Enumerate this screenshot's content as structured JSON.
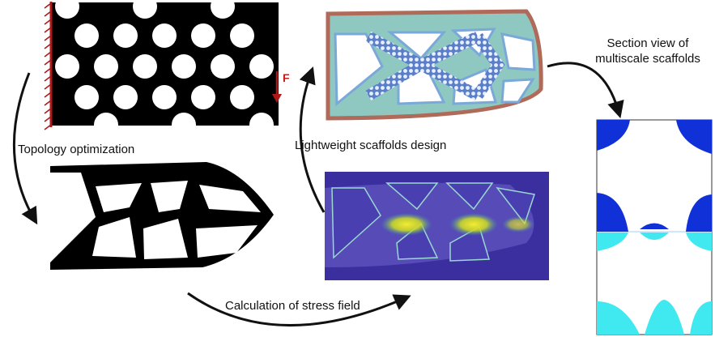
{
  "labels": {
    "topology": "Topology optimization",
    "lightweight": "Lightweight scaffolds design",
    "section_line1": "Section view of",
    "section_line2": "multiscale scaffolds",
    "stress": "Calculation of stress field",
    "force": "F"
  },
  "colors": {
    "design_domain": "#000000",
    "wall_hatch": "#b01818",
    "force_arrow": "#b01818",
    "scaffold_fill": "#8ec8c0",
    "scaffold_border": "#b06a5a",
    "stress_background": "#3b2fa0",
    "stress_high": "#e8e020",
    "section_dark": "#1030d8",
    "section_light": "#40e8f0",
    "arrow": "#111111"
  }
}
